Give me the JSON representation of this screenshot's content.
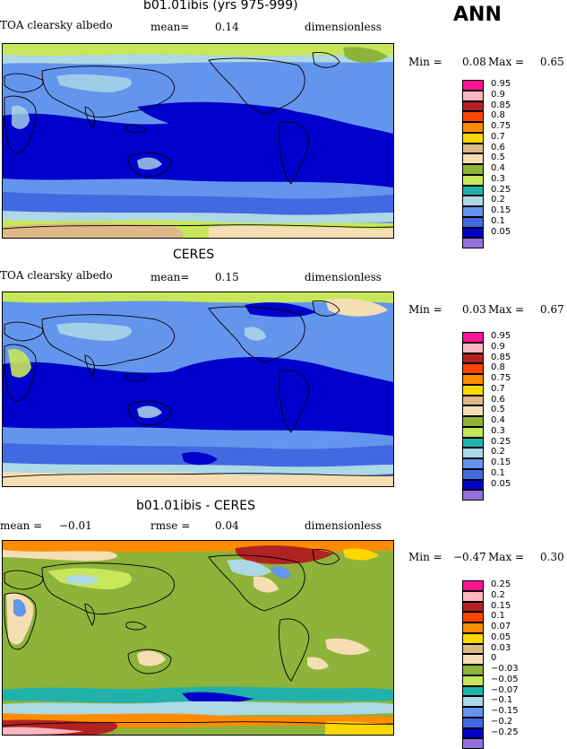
{
  "season": "ANN",
  "panels": [
    {
      "id": "model",
      "title": "b01.01ibis (yrs 975-999)",
      "left_label": "TOA clearsky albedo",
      "mid_label": "mean=",
      "mid_value": "0.14",
      "units": "dimensionless",
      "min_label": "Min =",
      "min_value": "0.08",
      "max_label": "Max =",
      "max_value": "0.65",
      "legend": {
        "labels": [
          "0.95",
          "0.9",
          "0.85",
          "0.8",
          "0.75",
          "0.7",
          "0.6",
          "0.5",
          "0.4",
          "0.3",
          "0.25",
          "0.2",
          "0.15",
          "0.1",
          "0.05"
        ],
        "colors": [
          "#ff1493",
          "#ffb6c1",
          "#b22222",
          "#ff4500",
          "#ff8c00",
          "#ffd700",
          "#deb887",
          "#f5deb3",
          "#8db33a",
          "#c8e65a",
          "#20b2aa",
          "#add8e6",
          "#6495ed",
          "#4169e1",
          "#0000cd",
          "#9370db"
        ]
      }
    },
    {
      "id": "obs",
      "title": "CERES",
      "left_label": "TOA clearsky albedo",
      "mid_label": "mean=",
      "mid_value": "0.15",
      "units": "dimensionless",
      "min_label": "Min =",
      "min_value": "0.03",
      "max_label": "Max =",
      "max_value": "0.67",
      "legend": {
        "labels": [
          "0.95",
          "0.9",
          "0.85",
          "0.8",
          "0.75",
          "0.7",
          "0.6",
          "0.5",
          "0.4",
          "0.3",
          "0.25",
          "0.2",
          "0.15",
          "0.1",
          "0.05"
        ],
        "colors": [
          "#ff1493",
          "#ffb6c1",
          "#b22222",
          "#ff4500",
          "#ff8c00",
          "#ffd700",
          "#deb887",
          "#f5deb3",
          "#8db33a",
          "#c8e65a",
          "#20b2aa",
          "#add8e6",
          "#6495ed",
          "#4169e1",
          "#0000cd",
          "#9370db"
        ]
      }
    },
    {
      "id": "diff",
      "title": "b01.01ibis - CERES",
      "left_label": "mean =",
      "left_value": "−0.01",
      "mid_label": "rmse =",
      "mid_value": "0.04",
      "units": "dimensionless",
      "min_label": "Min =",
      "min_value": "−0.47",
      "max_label": "Max =",
      "max_value": "0.30",
      "legend": {
        "labels": [
          "0.25",
          "0.2",
          "0.15",
          "0.1",
          "0.07",
          "0.05",
          "0.03",
          "0",
          "−0.03",
          "−0.05",
          "−0.07",
          "−0.1",
          "−0.15",
          "−0.2",
          "−0.25"
        ],
        "colors": [
          "#ff1493",
          "#ffb6c1",
          "#b22222",
          "#ff4500",
          "#ff8c00",
          "#ffd700",
          "#deb887",
          "#f5deb3",
          "#8db33a",
          "#c8e65a",
          "#20b2aa",
          "#add8e6",
          "#6495ed",
          "#4169e1",
          "#0000cd",
          "#9370db"
        ]
      }
    }
  ]
}
